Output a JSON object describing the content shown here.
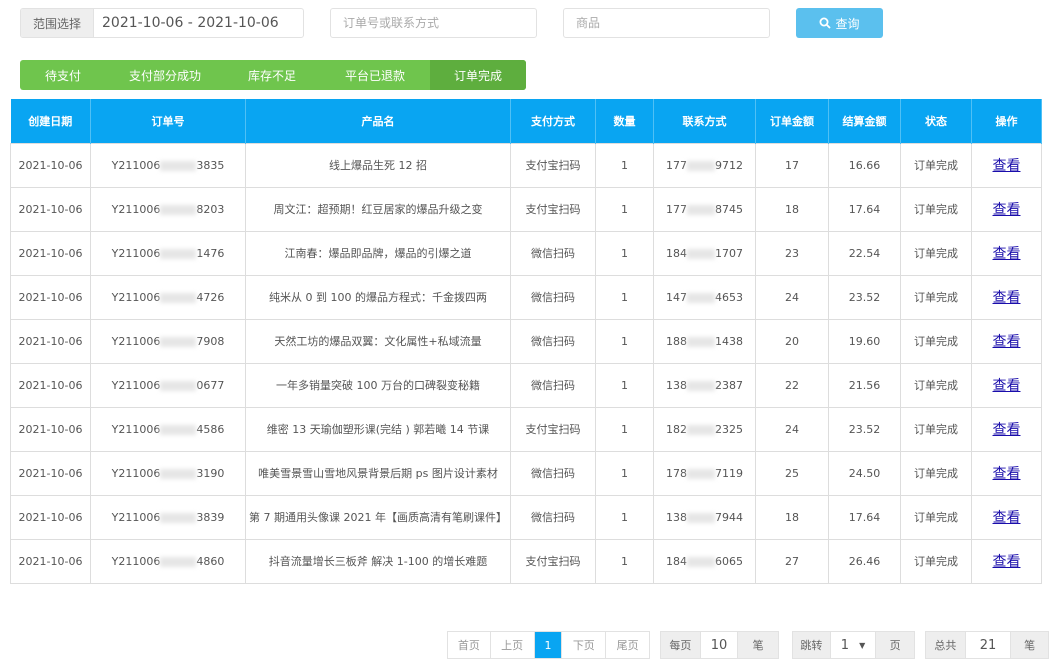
{
  "filters": {
    "range_label": "范围选择",
    "range_value": "2021-10-06 - 2021-10-06",
    "order_placeholder": "订单号或联系方式",
    "product_placeholder": "商品",
    "search_label": "查询"
  },
  "tabs": [
    {
      "label": "待支付"
    },
    {
      "label": "支付部分成功"
    },
    {
      "label": "库存不足"
    },
    {
      "label": "平台已退款"
    },
    {
      "label": "订单完成",
      "active": true
    }
  ],
  "colors": {
    "header": "#09a5f2",
    "tabs": "#6fc54d",
    "tab_active": "#5eae3e",
    "search": "#5bc0ee"
  },
  "table": {
    "headers": [
      "创建日期",
      "订单号",
      "产品名",
      "支付方式",
      "数量",
      "联系方式",
      "订单金额",
      "结算金额",
      "状态",
      "操作"
    ],
    "rows": [
      {
        "date": "2021-10-06",
        "order_prefix": "Y211006",
        "order_suffix": "3835",
        "product": "线上爆品生死 12 招",
        "pay": "支付宝扫码",
        "qty": "1",
        "phone_prefix": "177",
        "phone_suffix": "9712",
        "amount": "17",
        "settle": "16.66",
        "status": "订单完成",
        "action": "查看"
      },
      {
        "date": "2021-10-06",
        "order_prefix": "Y211006",
        "order_suffix": "8203",
        "product": "周文江：超预期！红豆居家的爆品升级之变",
        "pay": "支付宝扫码",
        "qty": "1",
        "phone_prefix": "177",
        "phone_suffix": "8745",
        "amount": "18",
        "settle": "17.64",
        "status": "订单完成",
        "action": "查看"
      },
      {
        "date": "2021-10-06",
        "order_prefix": "Y211006",
        "order_suffix": "1476",
        "product": "江南春：爆品即品牌，爆品的引爆之道",
        "pay": "微信扫码",
        "qty": "1",
        "phone_prefix": "184",
        "phone_suffix": "1707",
        "amount": "23",
        "settle": "22.54",
        "status": "订单完成",
        "action": "查看"
      },
      {
        "date": "2021-10-06",
        "order_prefix": "Y211006",
        "order_suffix": "4726",
        "product": "纯米从 0 到 100 的爆品方程式：千金拨四两",
        "pay": "微信扫码",
        "qty": "1",
        "phone_prefix": "147",
        "phone_suffix": "4653",
        "amount": "24",
        "settle": "23.52",
        "status": "订单完成",
        "action": "查看"
      },
      {
        "date": "2021-10-06",
        "order_prefix": "Y211006",
        "order_suffix": "7908",
        "product": "天然工坊的爆品双翼：文化属性+私域流量",
        "pay": "微信扫码",
        "qty": "1",
        "phone_prefix": "188",
        "phone_suffix": "1438",
        "amount": "20",
        "settle": "19.60",
        "status": "订单完成",
        "action": "查看"
      },
      {
        "date": "2021-10-06",
        "order_prefix": "Y211006",
        "order_suffix": "0677",
        "product": "一年多销量突破 100 万台的口碑裂变秘籍",
        "pay": "微信扫码",
        "qty": "1",
        "phone_prefix": "138",
        "phone_suffix": "2387",
        "amount": "22",
        "settle": "21.56",
        "status": "订单完成",
        "action": "查看"
      },
      {
        "date": "2021-10-06",
        "order_prefix": "Y211006",
        "order_suffix": "4586",
        "product": "维密 13 天瑜伽塑形课(完结 ) 郭若曦 14 节课",
        "pay": "支付宝扫码",
        "qty": "1",
        "phone_prefix": "182",
        "phone_suffix": "2325",
        "amount": "24",
        "settle": "23.52",
        "status": "订单完成",
        "action": "查看"
      },
      {
        "date": "2021-10-06",
        "order_prefix": "Y211006",
        "order_suffix": "3190",
        "product": "唯美雪景雪山雪地风景背景后期 ps 图片设计素材",
        "pay": "微信扫码",
        "qty": "1",
        "phone_prefix": "178",
        "phone_suffix": "7119",
        "amount": "25",
        "settle": "24.50",
        "status": "订单完成",
        "action": "查看"
      },
      {
        "date": "2021-10-06",
        "order_prefix": "Y211006",
        "order_suffix": "3839",
        "product": "第 7 期通用头像课 2021 年【画质高清有笔刷课件】",
        "pay": "微信扫码",
        "qty": "1",
        "phone_prefix": "138",
        "phone_suffix": "7944",
        "amount": "18",
        "settle": "17.64",
        "status": "订单完成",
        "action": "查看"
      },
      {
        "date": "2021-10-06",
        "order_prefix": "Y211006",
        "order_suffix": "4860",
        "product": "抖音流量增长三板斧 解决 1-100 的增长难题",
        "pay": "支付宝扫码",
        "qty": "1",
        "phone_prefix": "184",
        "phone_suffix": "6065",
        "amount": "27",
        "settle": "26.46",
        "status": "订单完成",
        "action": "查看"
      }
    ]
  },
  "pagination": {
    "first": "首页",
    "prev": "上页",
    "current": "1",
    "next": "下页",
    "last": "尾页",
    "per_page_label": "每页",
    "per_page": "10",
    "per_page_unit": "笔",
    "jump_label": "跳转",
    "jump_value": "1",
    "jump_unit": "页",
    "total_label": "总共",
    "total": "21",
    "total_unit": "笔"
  }
}
